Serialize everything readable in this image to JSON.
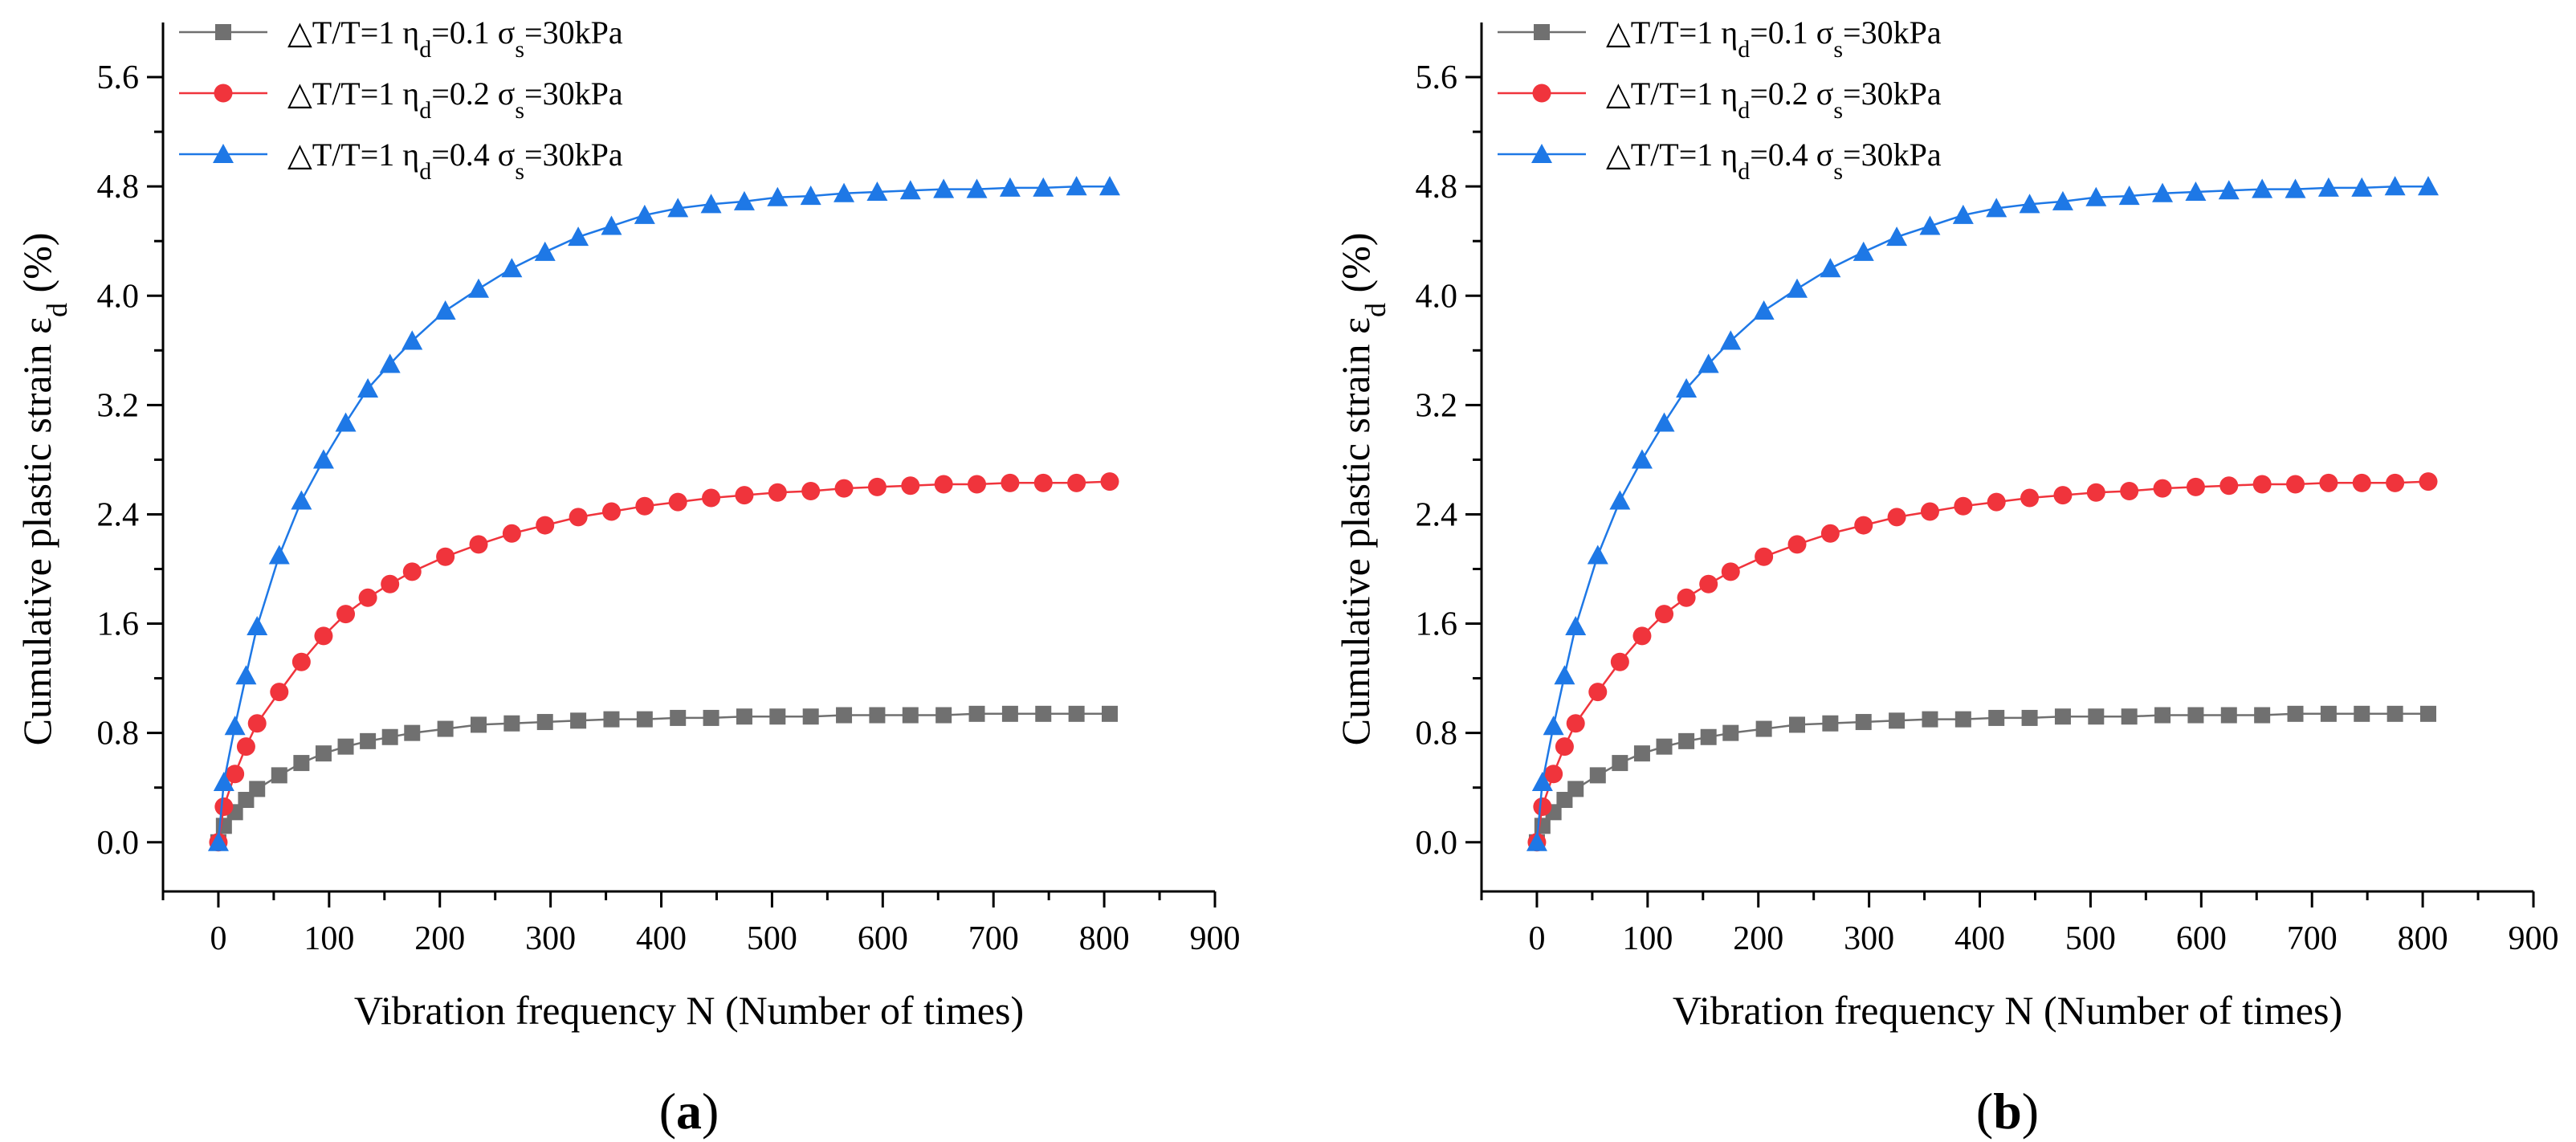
{
  "chart_data": [
    {
      "id": "a",
      "type": "line",
      "panel_label_open": "(",
      "panel_label_letter": "a",
      "panel_label_close": ")",
      "xlabel": "Vibration frequency N (Number of times)",
      "ylabel_main": "Cumulative plastic strain ε",
      "ylabel_sub": "d",
      "ylabel_tail": " (%)",
      "xlim": [
        -50,
        900
      ],
      "ylim": [
        -0.36,
        6.0
      ],
      "x_ticks": [
        "0",
        "100",
        "200",
        "300",
        "400",
        "500",
        "600",
        "700",
        "800",
        "900"
      ],
      "y_ticks": [
        "0.0",
        "0.8",
        "1.6",
        "2.4",
        "3.2",
        "4.0",
        "4.8",
        "5.6"
      ],
      "x": [
        0,
        5,
        15,
        25,
        35,
        55,
        75,
        95,
        115,
        135,
        155,
        175,
        205,
        235,
        265,
        295,
        325,
        355,
        385,
        415,
        445,
        475,
        505,
        535,
        565,
        595,
        625,
        655,
        685,
        715,
        745,
        775,
        805
      ],
      "series": [
        {
          "name": "ΔT/T=1 ηd=0.1 σs=30kPa",
          "legend_prefix": "△T/T=1 η",
          "legend_eta_sub": "d",
          "legend_mid": "=0.1 σ",
          "legend_sigma_sub": "s",
          "legend_suffix": "=30kPa",
          "color": "#707070",
          "marker": "square",
          "values": [
            0.0,
            0.12,
            0.22,
            0.31,
            0.39,
            0.49,
            0.58,
            0.65,
            0.7,
            0.74,
            0.77,
            0.8,
            0.83,
            0.86,
            0.87,
            0.88,
            0.89,
            0.9,
            0.9,
            0.91,
            0.91,
            0.92,
            0.92,
            0.92,
            0.93,
            0.93,
            0.93,
            0.93,
            0.94,
            0.94,
            0.94,
            0.94,
            0.94
          ]
        },
        {
          "name": "ΔT/T=1 ηd=0.2 σs=30kPa",
          "legend_prefix": "△T/T=1 η",
          "legend_eta_sub": "d",
          "legend_mid": "=0.2 σ",
          "legend_sigma_sub": "s",
          "legend_suffix": "=30kPa",
          "color": "#f0343c",
          "marker": "circle",
          "values": [
            0.0,
            0.26,
            0.5,
            0.7,
            0.87,
            1.1,
            1.32,
            1.51,
            1.67,
            1.79,
            1.89,
            1.98,
            2.09,
            2.18,
            2.26,
            2.32,
            2.38,
            2.42,
            2.46,
            2.49,
            2.52,
            2.54,
            2.56,
            2.57,
            2.59,
            2.6,
            2.61,
            2.62,
            2.62,
            2.63,
            2.63,
            2.63,
            2.64
          ]
        },
        {
          "name": "ΔT/T=1 ηd=0.4 σs=30kPa",
          "legend_prefix": "△T/T=1 η",
          "legend_eta_sub": "d",
          "legend_mid": "=0.4 σ",
          "legend_sigma_sub": "s",
          "legend_suffix": "=30kPa",
          "color": "#1e78e6",
          "marker": "triangle",
          "values": [
            0.0,
            0.44,
            0.85,
            1.22,
            1.58,
            2.1,
            2.5,
            2.8,
            3.07,
            3.32,
            3.5,
            3.67,
            3.89,
            4.05,
            4.2,
            4.32,
            4.43,
            4.51,
            4.59,
            4.64,
            4.67,
            4.69,
            4.72,
            4.73,
            4.75,
            4.76,
            4.77,
            4.78,
            4.78,
            4.79,
            4.79,
            4.8,
            4.8
          ]
        }
      ]
    },
    {
      "id": "b",
      "type": "line",
      "panel_label_open": "(",
      "panel_label_letter": "b",
      "panel_label_close": ")",
      "xlabel": "Vibration frequency N (Number of times)",
      "ylabel_main": "Cumulative plastic strain ε",
      "ylabel_sub": "d",
      "ylabel_tail": " (%)",
      "xlim": [
        -50,
        900
      ],
      "ylim": [
        -0.36,
        6.0
      ],
      "x_ticks": [
        "0",
        "100",
        "200",
        "300",
        "400",
        "500",
        "600",
        "700",
        "800",
        "900"
      ],
      "y_ticks": [
        "0.0",
        "0.8",
        "1.6",
        "2.4",
        "3.2",
        "4.0",
        "4.8",
        "5.6"
      ],
      "x": [
        0,
        5,
        15,
        25,
        35,
        55,
        75,
        95,
        115,
        135,
        155,
        175,
        205,
        235,
        265,
        295,
        325,
        355,
        385,
        415,
        445,
        475,
        505,
        535,
        565,
        595,
        625,
        655,
        685,
        715,
        745,
        775,
        805
      ],
      "series": [
        {
          "name": "ΔT/T=1 ηd=0.1 σs=30kPa",
          "legend_prefix": "△T/T=1 η",
          "legend_eta_sub": "d",
          "legend_mid": "=0.1 σ",
          "legend_sigma_sub": "s",
          "legend_suffix": "=30kPa",
          "color": "#707070",
          "marker": "square",
          "values": [
            0.0,
            0.12,
            0.22,
            0.31,
            0.39,
            0.49,
            0.58,
            0.65,
            0.7,
            0.74,
            0.77,
            0.8,
            0.83,
            0.86,
            0.87,
            0.88,
            0.89,
            0.9,
            0.9,
            0.91,
            0.91,
            0.92,
            0.92,
            0.92,
            0.93,
            0.93,
            0.93,
            0.93,
            0.94,
            0.94,
            0.94,
            0.94,
            0.94
          ]
        },
        {
          "name": "ΔT/T=1 ηd=0.2 σs=30kPa",
          "legend_prefix": "△T/T=1 η",
          "legend_eta_sub": "d",
          "legend_mid": "=0.2 σ",
          "legend_sigma_sub": "s",
          "legend_suffix": "=30kPa",
          "color": "#f0343c",
          "marker": "circle",
          "values": [
            0.0,
            0.26,
            0.5,
            0.7,
            0.87,
            1.1,
            1.32,
            1.51,
            1.67,
            1.79,
            1.89,
            1.98,
            2.09,
            2.18,
            2.26,
            2.32,
            2.38,
            2.42,
            2.46,
            2.49,
            2.52,
            2.54,
            2.56,
            2.57,
            2.59,
            2.6,
            2.61,
            2.62,
            2.62,
            2.63,
            2.63,
            2.63,
            2.64
          ]
        },
        {
          "name": "ΔT/T=1 ηd=0.4 σs=30kPa",
          "legend_prefix": "△T/T=1 η",
          "legend_eta_sub": "d",
          "legend_mid": "=0.4 σ",
          "legend_sigma_sub": "s",
          "legend_suffix": "=30kPa",
          "color": "#1e78e6",
          "marker": "triangle",
          "values": [
            0.0,
            0.44,
            0.85,
            1.22,
            1.58,
            2.1,
            2.5,
            2.8,
            3.07,
            3.32,
            3.5,
            3.67,
            3.89,
            4.05,
            4.2,
            4.32,
            4.43,
            4.51,
            4.59,
            4.64,
            4.67,
            4.69,
            4.72,
            4.73,
            4.75,
            4.76,
            4.77,
            4.78,
            4.78,
            4.79,
            4.79,
            4.8,
            4.8
          ]
        }
      ]
    }
  ]
}
